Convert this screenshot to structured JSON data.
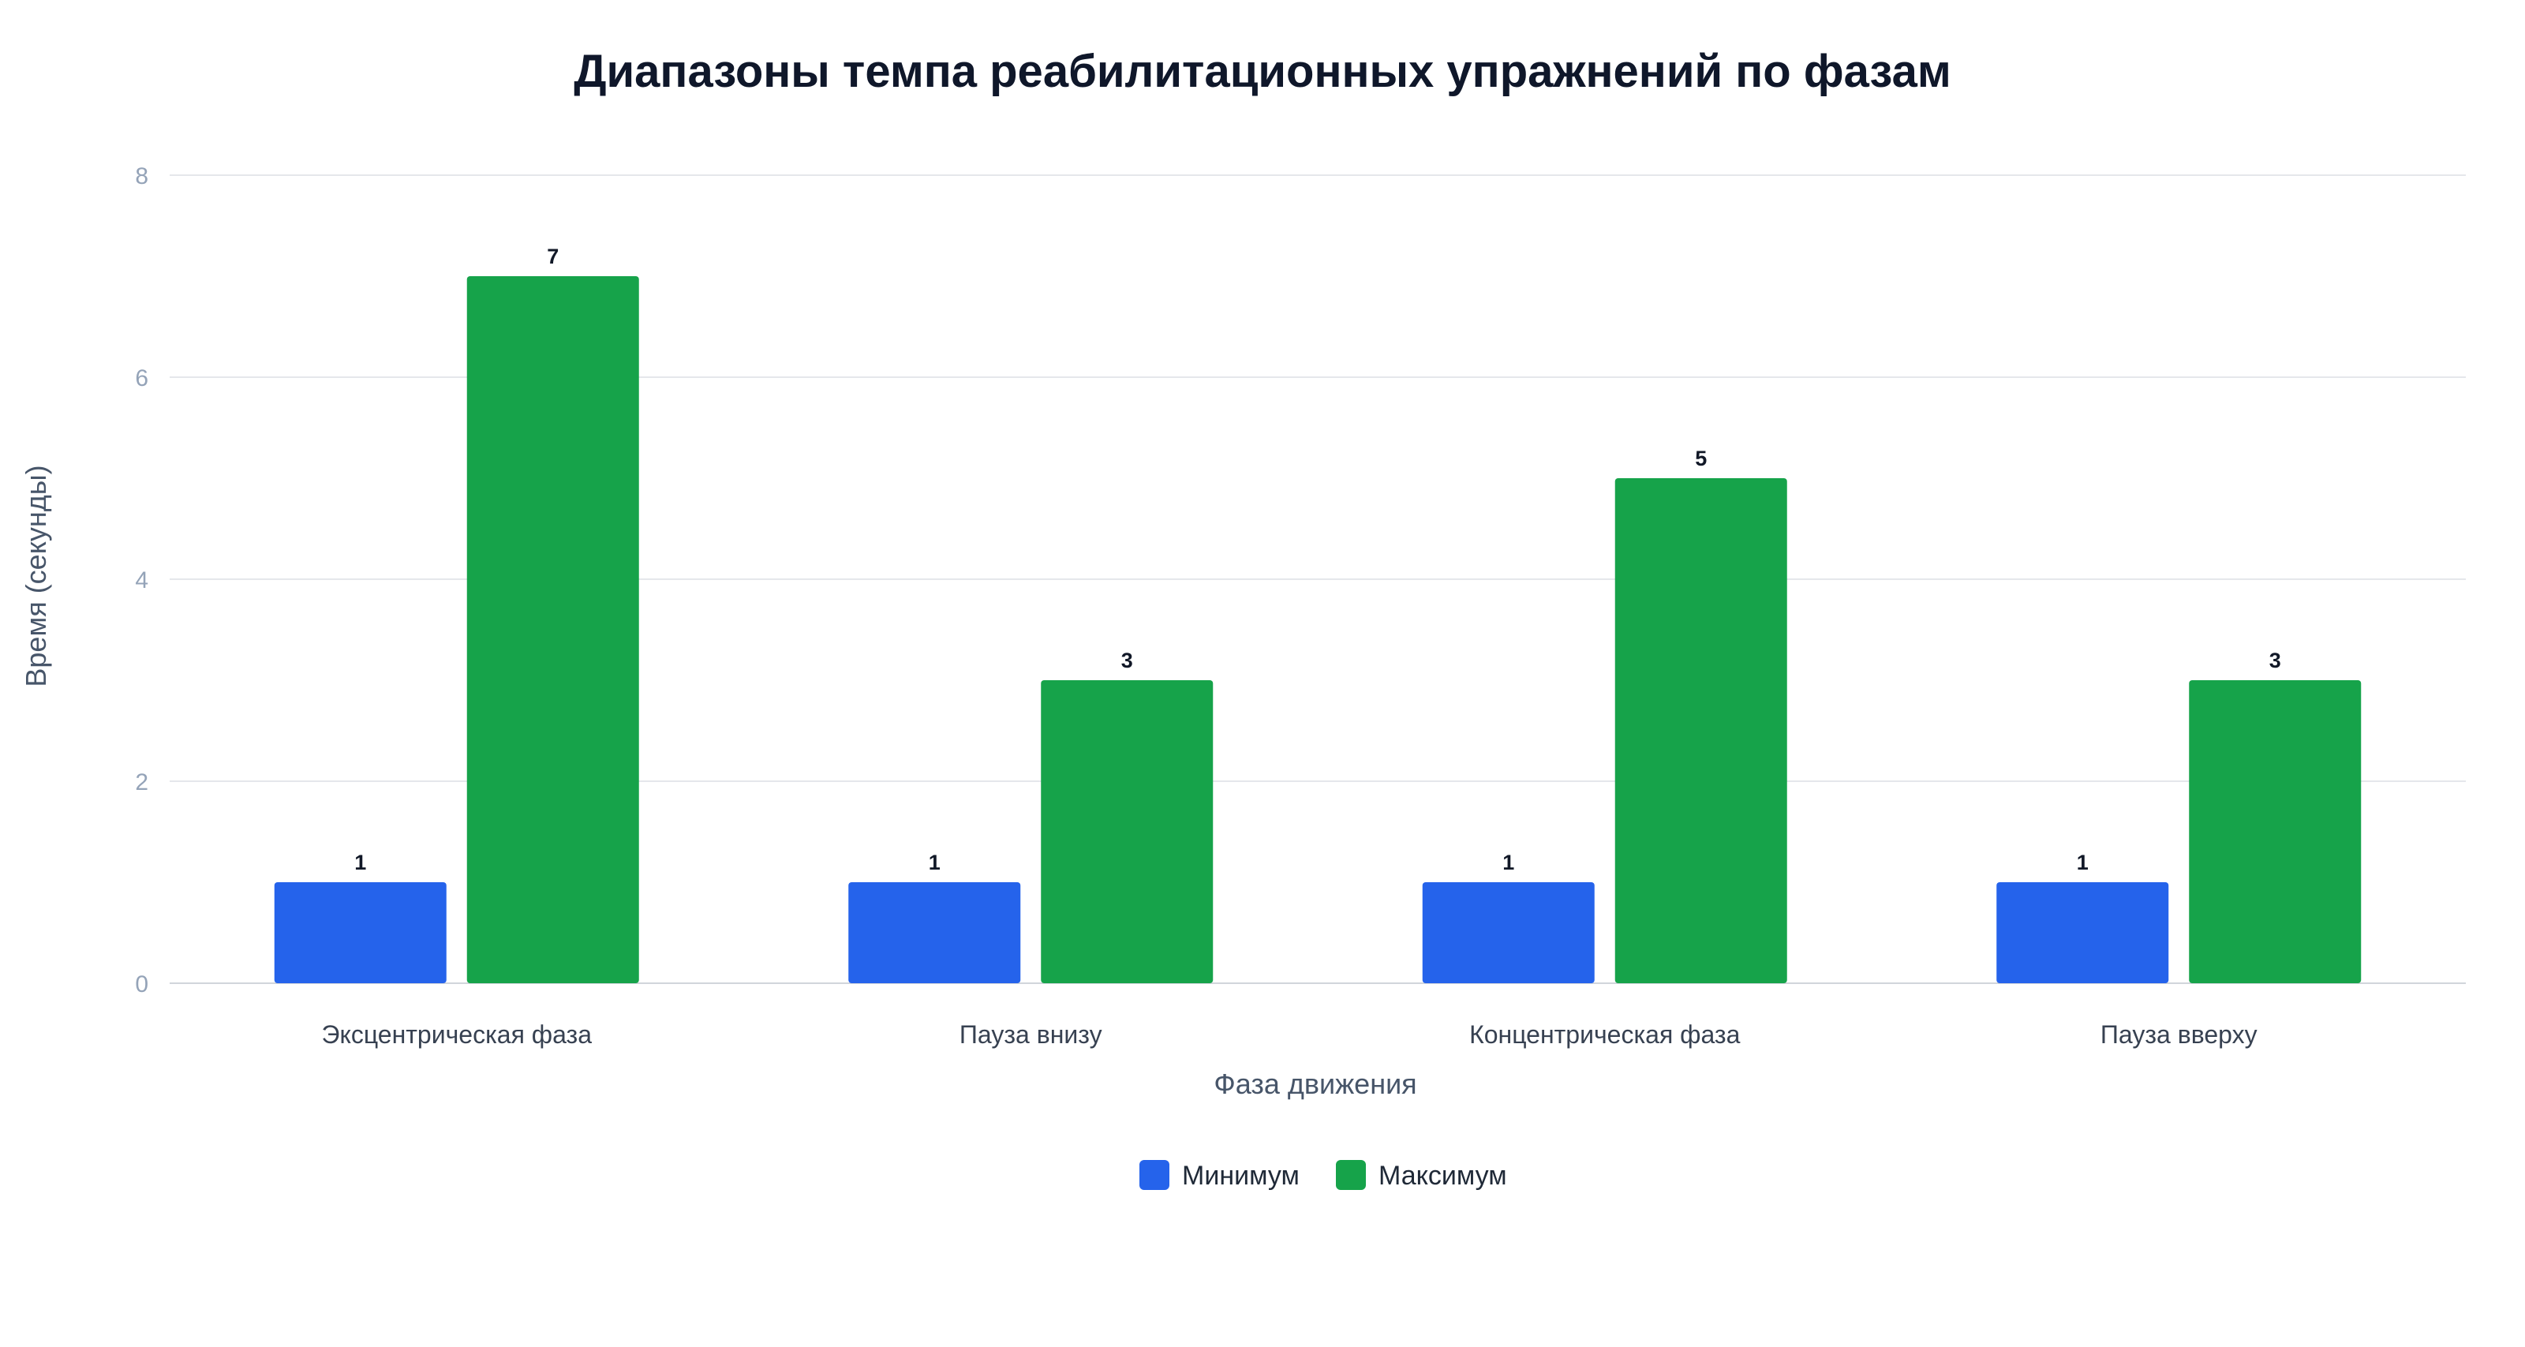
{
  "chart_data": {
    "type": "bar",
    "title": "Диапазоны темпа реабилитационных упражнений по фазам",
    "xlabel": "Фаза движения",
    "ylabel": "Время (секунды)",
    "categories": [
      "Эксцентрическая фаза",
      "Пауза внизу",
      "Концентрическая фаза",
      "Пауза вверху"
    ],
    "series": [
      {
        "name": "Минимум",
        "color": "#2563eb",
        "values": [
          1,
          1,
          1,
          1
        ]
      },
      {
        "name": "Максимум",
        "color": "#16a34a",
        "values": [
          7,
          3,
          5,
          3
        ]
      }
    ],
    "ylim": [
      0,
      8
    ],
    "yticks": [
      "0",
      "2",
      "4",
      "6",
      "8"
    ],
    "grid": true,
    "legend_position": "bottom-center",
    "data_labels": true
  }
}
